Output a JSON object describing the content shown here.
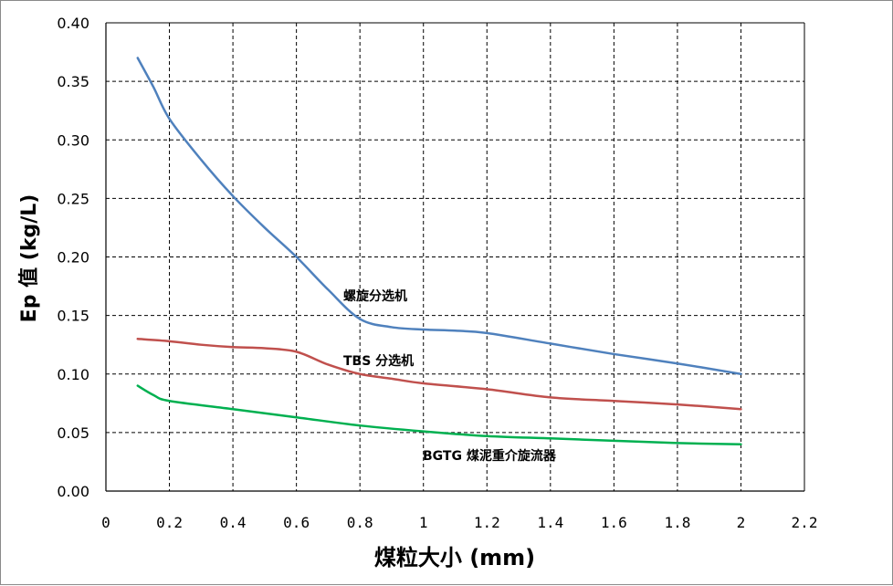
{
  "chart_data": {
    "type": "line",
    "title": "",
    "xlabel": "煤粒大小 (mm)",
    "ylabel": "Ep 值 (kg/L)",
    "xlim": [
      0,
      2.2
    ],
    "ylim": [
      0,
      0.4
    ],
    "xticks": [
      "0",
      "0.2",
      "0.4",
      "0.6",
      "0.8",
      "1",
      "1.2",
      "1.4",
      "1.6",
      "1.8",
      "2",
      "2.2"
    ],
    "yticks": [
      "0.00",
      "0.05",
      "0.10",
      "0.15",
      "0.20",
      "0.25",
      "0.30",
      "0.35",
      "0.40"
    ],
    "grid": true,
    "legend": "none",
    "series": [
      {
        "name": "螺旋分选机",
        "color": "#4f81bd",
        "x": [
          0.1,
          0.15,
          0.2,
          0.3,
          0.4,
          0.5,
          0.6,
          0.7,
          0.8,
          0.9,
          1.0,
          1.1,
          1.2,
          1.4,
          1.6,
          1.8,
          2.0
        ],
        "y": [
          0.37,
          0.345,
          0.318,
          0.283,
          0.252,
          0.225,
          0.2,
          0.172,
          0.147,
          0.14,
          0.138,
          0.137,
          0.135,
          0.126,
          0.117,
          0.109,
          0.1
        ]
      },
      {
        "name": "TBS 分选机",
        "color": "#c0504d",
        "x": [
          0.1,
          0.2,
          0.3,
          0.4,
          0.5,
          0.6,
          0.7,
          0.8,
          0.9,
          1.0,
          1.2,
          1.4,
          1.6,
          1.8,
          2.0
        ],
        "y": [
          0.13,
          0.128,
          0.125,
          0.123,
          0.122,
          0.119,
          0.108,
          0.1,
          0.096,
          0.092,
          0.087,
          0.08,
          0.077,
          0.074,
          0.07
        ]
      },
      {
        "name": "BGTG 煤泥重介旋流器",
        "color": "#00b050",
        "x": [
          0.1,
          0.15,
          0.2,
          0.4,
          0.6,
          0.8,
          1.0,
          1.2,
          1.4,
          1.6,
          1.8,
          2.0
        ],
        "y": [
          0.09,
          0.082,
          0.077,
          0.07,
          0.063,
          0.056,
          0.051,
          0.047,
          0.045,
          0.043,
          0.041,
          0.04
        ]
      }
    ]
  }
}
